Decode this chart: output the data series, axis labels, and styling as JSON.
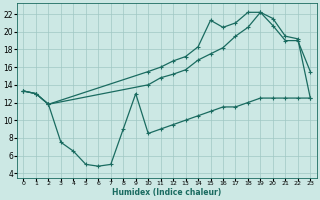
{
  "background_color": "#cce8e4",
  "grid_color": "#a0c8c4",
  "line_color": "#1a6b60",
  "xlabel": "Humidex (Indice chaleur)",
  "xlim": [
    -0.5,
    23.5
  ],
  "ylim": [
    3.5,
    23.2
  ],
  "xticks": [
    0,
    1,
    2,
    3,
    4,
    5,
    6,
    7,
    8,
    9,
    10,
    11,
    12,
    13,
    14,
    15,
    16,
    17,
    18,
    19,
    20,
    21,
    22,
    23
  ],
  "yticks": [
    4,
    6,
    8,
    10,
    12,
    14,
    16,
    18,
    20,
    22
  ],
  "line1_x": [
    0,
    1,
    2,
    10,
    11,
    12,
    13,
    14,
    15,
    16,
    17,
    18,
    19,
    20,
    21,
    22,
    23
  ],
  "line1_y": [
    13.3,
    13.0,
    11.8,
    15.5,
    16.0,
    16.7,
    17.2,
    18.3,
    21.3,
    20.5,
    21.0,
    22.2,
    22.2,
    20.7,
    19.0,
    19.0,
    15.5
  ],
  "line2_x": [
    0,
    1,
    2,
    10,
    11,
    12,
    13,
    14,
    15,
    16,
    17,
    18,
    19,
    20,
    21,
    22,
    23
  ],
  "line2_y": [
    13.3,
    13.0,
    11.8,
    14.0,
    14.8,
    15.2,
    15.7,
    16.8,
    17.5,
    18.2,
    19.5,
    20.5,
    22.2,
    21.5,
    19.5,
    19.2,
    12.5
  ],
  "line3_x": [
    0,
    1,
    2,
    3,
    4,
    5,
    6,
    7,
    8,
    9,
    10,
    11,
    12,
    13,
    14,
    15,
    16,
    17,
    18,
    19,
    20,
    21,
    22,
    23
  ],
  "line3_y": [
    13.3,
    13.0,
    11.8,
    7.5,
    6.5,
    5.0,
    4.8,
    5.0,
    9.0,
    13.0,
    8.5,
    9.0,
    9.5,
    10.0,
    10.5,
    11.0,
    11.5,
    11.5,
    12.0,
    12.5,
    12.5,
    12.5,
    12.5,
    12.5
  ]
}
